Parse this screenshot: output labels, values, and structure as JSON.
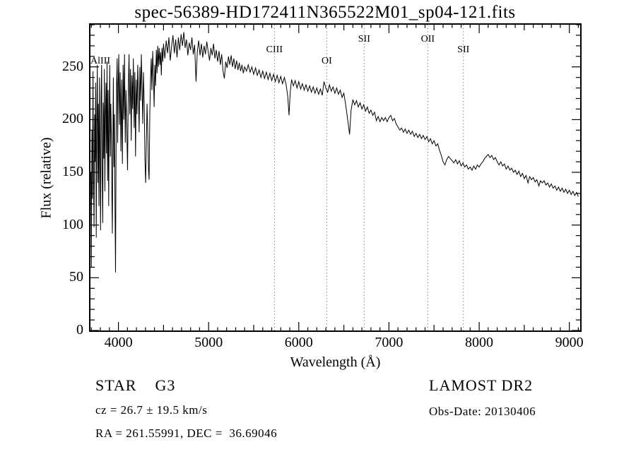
{
  "chart_data": {
    "type": "line",
    "title": "spec-56389-HD172411N365522M01_sp04-121.fits",
    "xlabel": "Wavelength (Å)",
    "ylabel": "Flux (relative)",
    "xlim": [
      3690,
      9120
    ],
    "ylim": [
      0,
      290
    ],
    "x_major_ticks": [
      4000,
      5000,
      6000,
      7000,
      8000,
      9000
    ],
    "y_major_ticks": [
      0,
      50,
      100,
      150,
      200,
      250
    ],
    "x_minor_step": 100,
    "y_minor_step": 10,
    "grid": "off",
    "legend": "none",
    "marker_line_color": "#808080",
    "line_color": "#000000",
    "spectral_lines": [
      {
        "label": "AlIII",
        "wavelength": 3800,
        "level": 3,
        "line": false
      },
      {
        "label": "CIII",
        "wavelength": 5730,
        "level": 2,
        "line": true
      },
      {
        "label": "OI",
        "wavelength": 6310,
        "level": 3,
        "line": true
      },
      {
        "label": "SII",
        "wavelength": 6725,
        "level": 1,
        "line": true
      },
      {
        "label": "OII",
        "wavelength": 7430,
        "level": 1,
        "line": true
      },
      {
        "label": "SII",
        "wavelength": 7825,
        "level": 2,
        "line": true
      }
    ],
    "points": [
      [
        3695,
        150
      ],
      [
        3700,
        60
      ],
      [
        3706,
        190
      ],
      [
        3712,
        125
      ],
      [
        3718,
        246
      ],
      [
        3724,
        150
      ],
      [
        3730,
        98
      ],
      [
        3736,
        205
      ],
      [
        3742,
        160
      ],
      [
        3748,
        235
      ],
      [
        3754,
        88
      ],
      [
        3760,
        198
      ],
      [
        3766,
        252
      ],
      [
        3772,
        140
      ],
      [
        3778,
        215
      ],
      [
        3784,
        118
      ],
      [
        3790,
        240
      ],
      [
        3796,
        170
      ],
      [
        3802,
        95
      ],
      [
        3808,
        222
      ],
      [
        3814,
        252
      ],
      [
        3820,
        148
      ],
      [
        3826,
        102
      ],
      [
        3832,
        216
      ],
      [
        3838,
        163
      ],
      [
        3844,
        248
      ],
      [
        3850,
        132
      ],
      [
        3856,
        205
      ],
      [
        3862,
        235
      ],
      [
        3868,
        168
      ],
      [
        3874,
        255
      ],
      [
        3880,
        142
      ],
      [
        3886,
        228
      ],
      [
        3892,
        118
      ],
      [
        3898,
        200
      ],
      [
        3904,
        252
      ],
      [
        3910,
        165
      ],
      [
        3916,
        215
      ],
      [
        3922,
        185
      ],
      [
        3928,
        125
      ],
      [
        3933,
        92
      ],
      [
        3938,
        180
      ],
      [
        3944,
        240
      ],
      [
        3950,
        155
      ],
      [
        3956,
        205
      ],
      [
        3962,
        120
      ],
      [
        3968,
        55
      ],
      [
        3974,
        165
      ],
      [
        3980,
        235
      ],
      [
        3986,
        258
      ],
      [
        3992,
        178
      ],
      [
        3998,
        232
      ],
      [
        4004,
        262
      ],
      [
        4012,
        195
      ],
      [
        4020,
        245
      ],
      [
        4028,
        170
      ],
      [
        4036,
        238
      ],
      [
        4044,
        158
      ],
      [
        4052,
        252
      ],
      [
        4060,
        200
      ],
      [
        4068,
        262
      ],
      [
        4076,
        178
      ],
      [
        4084,
        228
      ],
      [
        4092,
        195
      ],
      [
        4101,
        152
      ],
      [
        4110,
        230
      ],
      [
        4118,
        262
      ],
      [
        4126,
        205
      ],
      [
        4134,
        248
      ],
      [
        4142,
        180
      ],
      [
        4150,
        242
      ],
      [
        4158,
        210
      ],
      [
        4166,
        258
      ],
      [
        4174,
        192
      ],
      [
        4182,
        245
      ],
      [
        4190,
        165
      ],
      [
        4198,
        238
      ],
      [
        4206,
        205
      ],
      [
        4214,
        252
      ],
      [
        4222,
        225
      ],
      [
        4230,
        188
      ],
      [
        4238,
        250
      ],
      [
        4246,
        218
      ],
      [
        4254,
        262
      ],
      [
        4262,
        232
      ],
      [
        4270,
        196
      ],
      [
        4278,
        245
      ],
      [
        4286,
        215
      ],
      [
        4294,
        162
      ],
      [
        4302,
        140
      ],
      [
        4310,
        178
      ],
      [
        4318,
        215
      ],
      [
        4326,
        185
      ],
      [
        4334,
        152
      ],
      [
        4340,
        143
      ],
      [
        4348,
        205
      ],
      [
        4356,
        238
      ],
      [
        4364,
        258
      ],
      [
        4372,
        228
      ],
      [
        4380,
        265
      ],
      [
        4388,
        242
      ],
      [
        4396,
        212
      ],
      [
        4404,
        252
      ],
      [
        4412,
        232
      ],
      [
        4420,
        266
      ],
      [
        4428,
        244
      ],
      [
        4436,
        270
      ],
      [
        4444,
        250
      ],
      [
        4452,
        268
      ],
      [
        4460,
        252
      ],
      [
        4468,
        264
      ],
      [
        4476,
        242
      ],
      [
        4484,
        268
      ],
      [
        4492,
        255
      ],
      [
        4500,
        272
      ],
      [
        4515,
        258
      ],
      [
        4530,
        275
      ],
      [
        4545,
        263
      ],
      [
        4560,
        278
      ],
      [
        4575,
        256
      ],
      [
        4590,
        270
      ],
      [
        4605,
        280
      ],
      [
        4620,
        263
      ],
      [
        4635,
        276
      ],
      [
        4650,
        259
      ],
      [
        4665,
        278
      ],
      [
        4680,
        266
      ],
      [
        4695,
        281
      ],
      [
        4710,
        270
      ],
      [
        4725,
        283
      ],
      [
        4740,
        268
      ],
      [
        4755,
        276
      ],
      [
        4770,
        261
      ],
      [
        4785,
        273
      ],
      [
        4800,
        266
      ],
      [
        4815,
        278
      ],
      [
        4830,
        262
      ],
      [
        4845,
        271
      ],
      [
        4861,
        236
      ],
      [
        4875,
        264
      ],
      [
        4890,
        275
      ],
      [
        4905,
        261
      ],
      [
        4920,
        272
      ],
      [
        4935,
        259
      ],
      [
        4950,
        270
      ],
      [
        4965,
        262
      ],
      [
        4980,
        274
      ],
      [
        4995,
        265
      ],
      [
        5010,
        256
      ],
      [
        5025,
        268
      ],
      [
        5040,
        261
      ],
      [
        5055,
        272
      ],
      [
        5070,
        258
      ],
      [
        5085,
        266
      ],
      [
        5100,
        255
      ],
      [
        5115,
        265
      ],
      [
        5130,
        252
      ],
      [
        5145,
        262
      ],
      [
        5160,
        246
      ],
      [
        5175,
        239
      ],
      [
        5190,
        255
      ],
      [
        5205,
        249
      ],
      [
        5220,
        260
      ],
      [
        5235,
        252
      ],
      [
        5250,
        261
      ],
      [
        5265,
        250
      ],
      [
        5280,
        258
      ],
      [
        5295,
        248
      ],
      [
        5310,
        256
      ],
      [
        5325,
        247
      ],
      [
        5340,
        254
      ],
      [
        5355,
        246
      ],
      [
        5370,
        252
      ],
      [
        5385,
        244
      ],
      [
        5400,
        250
      ],
      [
        5420,
        246
      ],
      [
        5440,
        252
      ],
      [
        5460,
        245
      ],
      [
        5480,
        250
      ],
      [
        5500,
        243
      ],
      [
        5520,
        249
      ],
      [
        5540,
        242
      ],
      [
        5560,
        247
      ],
      [
        5580,
        240
      ],
      [
        5600,
        246
      ],
      [
        5620,
        239
      ],
      [
        5640,
        245
      ],
      [
        5660,
        238
      ],
      [
        5680,
        244
      ],
      [
        5700,
        237
      ],
      [
        5720,
        243
      ],
      [
        5740,
        236
      ],
      [
        5760,
        242
      ],
      [
        5780,
        235
      ],
      [
        5800,
        241
      ],
      [
        5820,
        234
      ],
      [
        5840,
        240
      ],
      [
        5860,
        233
      ],
      [
        5878,
        222
      ],
      [
        5892,
        204
      ],
      [
        5905,
        226
      ],
      [
        5920,
        238
      ],
      [
        5940,
        232
      ],
      [
        5960,
        237
      ],
      [
        5980,
        230
      ],
      [
        6000,
        236
      ],
      [
        6020,
        229
      ],
      [
        6040,
        234
      ],
      [
        6060,
        228
      ],
      [
        6080,
        233
      ],
      [
        6100,
        227
      ],
      [
        6120,
        232
      ],
      [
        6140,
        226
      ],
      [
        6160,
        231
      ],
      [
        6180,
        225
      ],
      [
        6200,
        230
      ],
      [
        6220,
        224
      ],
      [
        6240,
        229
      ],
      [
        6260,
        223
      ],
      [
        6280,
        236
      ],
      [
        6300,
        230
      ],
      [
        6320,
        226
      ],
      [
        6340,
        233
      ],
      [
        6360,
        227
      ],
      [
        6380,
        231
      ],
      [
        6400,
        225
      ],
      [
        6420,
        230
      ],
      [
        6440,
        224
      ],
      [
        6460,
        228
      ],
      [
        6480,
        221
      ],
      [
        6500,
        225
      ],
      [
        6520,
        214
      ],
      [
        6545,
        198
      ],
      [
        6563,
        186
      ],
      [
        6580,
        209
      ],
      [
        6600,
        219
      ],
      [
        6620,
        214
      ],
      [
        6640,
        218
      ],
      [
        6660,
        212
      ],
      [
        6680,
        216
      ],
      [
        6700,
        210
      ],
      [
        6720,
        214
      ],
      [
        6740,
        208
      ],
      [
        6760,
        212
      ],
      [
        6780,
        206
      ],
      [
        6800,
        209
      ],
      [
        6820,
        204
      ],
      [
        6840,
        207
      ],
      [
        6860,
        199
      ],
      [
        6880,
        203
      ],
      [
        6900,
        198
      ],
      [
        6920,
        202
      ],
      [
        6940,
        199
      ],
      [
        6960,
        202
      ],
      [
        6980,
        198
      ],
      [
        7000,
        202
      ],
      [
        7020,
        204
      ],
      [
        7040,
        199
      ],
      [
        7060,
        201
      ],
      [
        7080,
        196
      ],
      [
        7100,
        193
      ],
      [
        7120,
        190
      ],
      [
        7140,
        192
      ],
      [
        7160,
        188
      ],
      [
        7180,
        191
      ],
      [
        7200,
        187
      ],
      [
        7220,
        190
      ],
      [
        7240,
        186
      ],
      [
        7260,
        189
      ],
      [
        7280,
        184
      ],
      [
        7300,
        187
      ],
      [
        7320,
        183
      ],
      [
        7340,
        186
      ],
      [
        7360,
        182
      ],
      [
        7380,
        185
      ],
      [
        7400,
        181
      ],
      [
        7420,
        184
      ],
      [
        7440,
        179
      ],
      [
        7460,
        182
      ],
      [
        7480,
        177
      ],
      [
        7500,
        180
      ],
      [
        7520,
        175
      ],
      [
        7540,
        177
      ],
      [
        7560,
        171
      ],
      [
        7580,
        166
      ],
      [
        7600,
        160
      ],
      [
        7620,
        157
      ],
      [
        7640,
        162
      ],
      [
        7660,
        165
      ],
      [
        7680,
        163
      ],
      [
        7700,
        161
      ],
      [
        7720,
        159
      ],
      [
        7740,
        162
      ],
      [
        7760,
        158
      ],
      [
        7780,
        161
      ],
      [
        7800,
        156
      ],
      [
        7820,
        159
      ],
      [
        7840,
        155
      ],
      [
        7860,
        157
      ],
      [
        7880,
        153
      ],
      [
        7900,
        155
      ],
      [
        7920,
        152
      ],
      [
        7940,
        156
      ],
      [
        7960,
        153
      ],
      [
        7980,
        157
      ],
      [
        8000,
        155
      ],
      [
        8020,
        158
      ],
      [
        8040,
        160
      ],
      [
        8060,
        163
      ],
      [
        8080,
        165
      ],
      [
        8100,
        167
      ],
      [
        8120,
        164
      ],
      [
        8140,
        166
      ],
      [
        8160,
        162
      ],
      [
        8180,
        164
      ],
      [
        8200,
        160
      ],
      [
        8220,
        157
      ],
      [
        8240,
        160
      ],
      [
        8260,
        156
      ],
      [
        8280,
        158
      ],
      [
        8300,
        153
      ],
      [
        8320,
        156
      ],
      [
        8340,
        152
      ],
      [
        8360,
        154
      ],
      [
        8380,
        150
      ],
      [
        8400,
        152
      ],
      [
        8420,
        148
      ],
      [
        8440,
        151
      ],
      [
        8460,
        146
      ],
      [
        8480,
        149
      ],
      [
        8500,
        144
      ],
      [
        8520,
        147
      ],
      [
        8542,
        140
      ],
      [
        8560,
        146
      ],
      [
        8580,
        143
      ],
      [
        8600,
        145
      ],
      [
        8620,
        141
      ],
      [
        8640,
        143
      ],
      [
        8662,
        137
      ],
      [
        8680,
        142
      ],
      [
        8700,
        140
      ],
      [
        8720,
        142
      ],
      [
        8740,
        138
      ],
      [
        8760,
        140
      ],
      [
        8780,
        136
      ],
      [
        8800,
        139
      ],
      [
        8820,
        135
      ],
      [
        8840,
        137
      ],
      [
        8860,
        133
      ],
      [
        8880,
        136
      ],
      [
        8900,
        132
      ],
      [
        8920,
        135
      ],
      [
        8940,
        131
      ],
      [
        8960,
        134
      ],
      [
        8980,
        130
      ],
      [
        9000,
        133
      ],
      [
        9020,
        129
      ],
      [
        9040,
        132
      ],
      [
        9060,
        128
      ],
      [
        9080,
        131
      ],
      [
        9100,
        127
      ]
    ]
  },
  "annotations": {
    "class_label": "STAR    G3",
    "survey": "LAMOST DR2",
    "cz": "cz = 26.7 ± 19.5 km/s",
    "obs_date": "Obs-Date: 20130406",
    "coordinates": "RA = 261.55991, DEC =  36.69046"
  }
}
